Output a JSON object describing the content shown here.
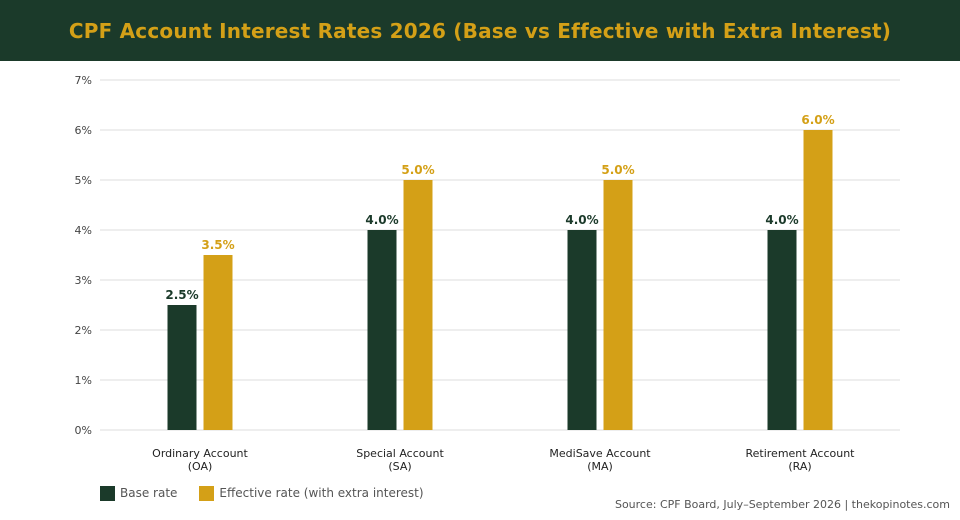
{
  "header": {
    "title": "CPF Account Interest Rates 2026 (Base vs Effective with Extra Interest)"
  },
  "colors": {
    "header_bg": "#1b3a2a",
    "title_text": "#d4a017",
    "base": "#1b3a2a",
    "effective": "#d4a017",
    "grid": "#dddddd"
  },
  "chart_data": {
    "type": "bar",
    "title": "CPF Account Interest Rates 2026 (Base vs Effective with Extra Interest)",
    "xlabel": "",
    "ylabel": "",
    "ylim": [
      0,
      7
    ],
    "yticks": [
      "0%",
      "1%",
      "2%",
      "3%",
      "4%",
      "5%",
      "6%",
      "7%"
    ],
    "grid": true,
    "legend_position": "bottom-left",
    "categories": [
      [
        "Ordinary Account",
        "(OA)"
      ],
      [
        "Special Account",
        "(SA)"
      ],
      [
        "MediSave Account",
        "(MA)"
      ],
      [
        "Retirement Account",
        "(RA)"
      ]
    ],
    "series": [
      {
        "name": "Base rate",
        "values": [
          2.5,
          4.0,
          4.0,
          4.0
        ],
        "labels": [
          "2.5%",
          "4.0%",
          "4.0%",
          "4.0%"
        ]
      },
      {
        "name": "Effective rate (with extra interest)",
        "values": [
          3.5,
          5.0,
          5.0,
          6.0
        ],
        "labels": [
          "3.5%",
          "5.0%",
          "5.0%",
          "6.0%"
        ]
      }
    ]
  },
  "legend": {
    "base_label": "Base rate",
    "effective_label": "Effective rate (with extra interest)"
  },
  "footer": {
    "source": "Source: CPF Board, July–September 2026 | thekopinotes.com"
  }
}
